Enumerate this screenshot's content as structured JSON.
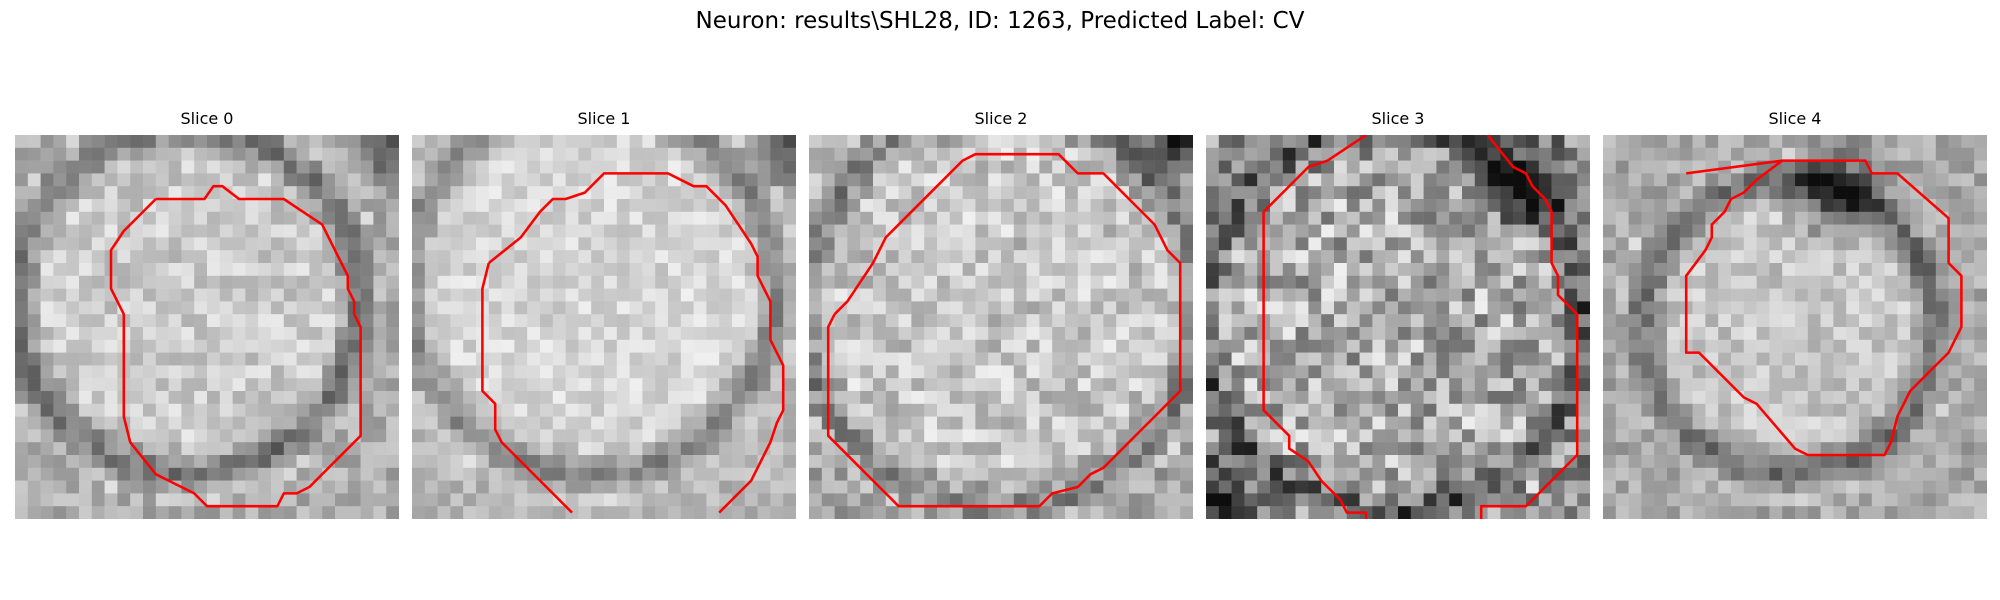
{
  "figure": {
    "title": "Neuron: results\\SHL28, ID: 1263, Predicted Label: CV"
  },
  "panels": [
    {
      "title": "Slice 0",
      "contour_color": "#ff0000"
    },
    {
      "title": "Slice 1",
      "contour_color": "#ff0000"
    },
    {
      "title": "Slice 2",
      "contour_color": "#ff0000"
    },
    {
      "title": "Slice 3",
      "contour_color": "#ff0000"
    },
    {
      "title": "Slice 4",
      "contour_color": "#ff0000"
    }
  ]
}
